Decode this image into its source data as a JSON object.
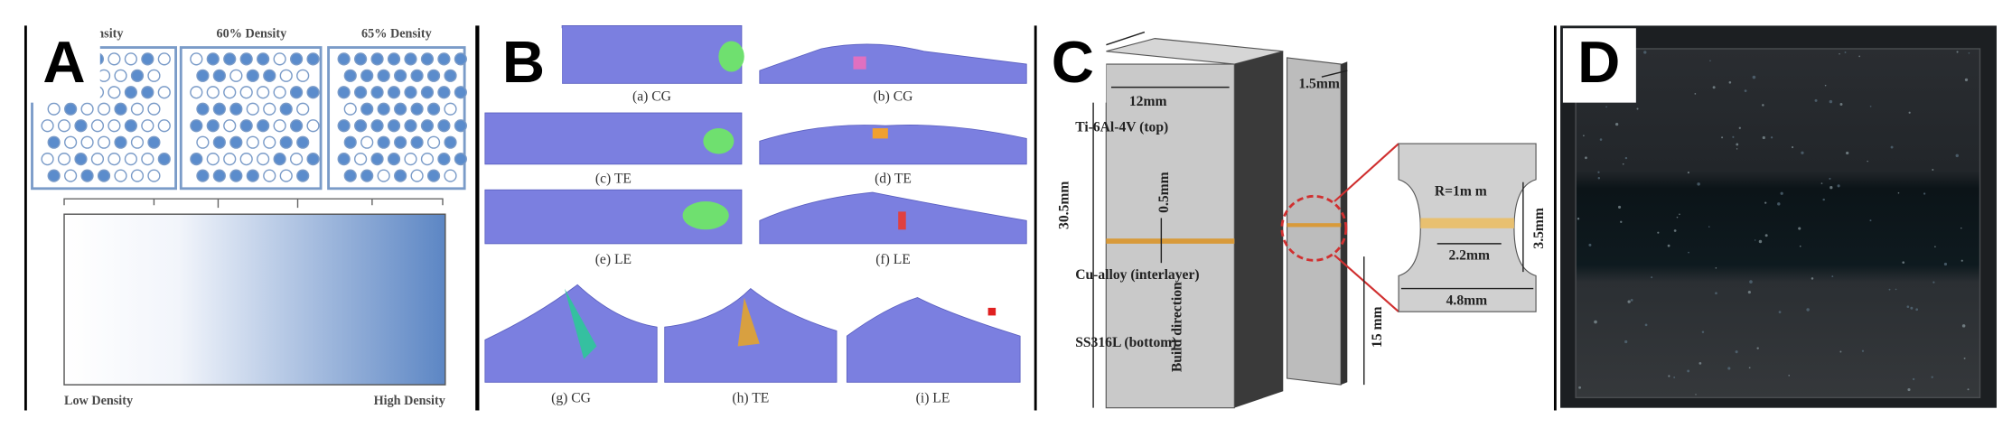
{
  "panels": [
    {
      "label": "A",
      "box_titles": [
        "Density",
        "60% Density",
        "65% Density"
      ],
      "low": "Low Density",
      "high": "High Density"
    },
    {
      "label": "B",
      "captions": [
        "(a) CG",
        "(b) CG",
        "(c) TE",
        "(d) TE",
        "(e) LE",
        "(f) LE",
        "(g) CG",
        "(h) TE",
        "(i) LE"
      ]
    },
    {
      "label": "C",
      "width": "12mm",
      "thickness": "1.5mm",
      "top": "Ti-6Al-4V (top)",
      "interlayer_thickness": "0.5mm",
      "height": "30.5mm",
      "interlayer": "Cu-alloy (interlayer)",
      "bottom": "SS316L (bottom)",
      "build": "Build direction",
      "lower": "15 mm",
      "radius": "R=1m m",
      "gauge_length": "2.2mm",
      "gauge_width": "3.5mm",
      "total_width": "4.8mm"
    },
    {
      "label": "D"
    }
  ]
}
